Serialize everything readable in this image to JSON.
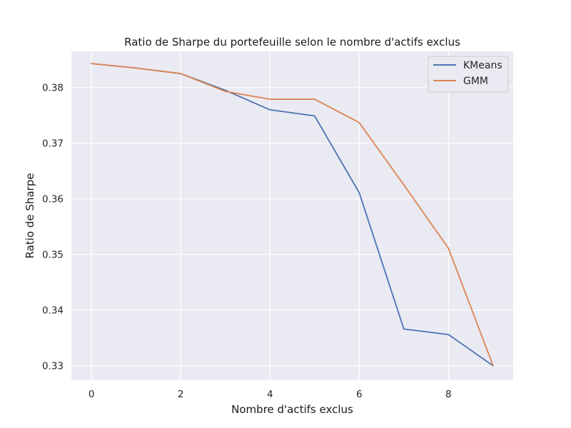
{
  "chart_data": {
    "type": "line",
    "title": "Ratio de Sharpe du portefeuille selon le nombre d'actifs exclus",
    "xlabel": "Nombre d'actifs exclus",
    "ylabel": "Ratio de Sharpe",
    "x": [
      0,
      1,
      2,
      3,
      4,
      5,
      6,
      7,
      8,
      9
    ],
    "xlim": [
      -0.45,
      9.45
    ],
    "ylim": [
      0.3274,
      0.3865
    ],
    "xticks": [
      0,
      2,
      4,
      6,
      8
    ],
    "yticks": [
      0.33,
      0.34,
      0.35,
      0.36,
      0.37,
      0.38
    ],
    "xtick_labels": [
      "0",
      "2",
      "4",
      "6",
      "8"
    ],
    "ytick_labels": [
      "0.33",
      "0.34",
      "0.35",
      "0.36",
      "0.37",
      "0.38"
    ],
    "grid": true,
    "legend_position": "top-right",
    "series": [
      {
        "name": "KMeans",
        "color": "#4c72b0",
        "values": [
          0.3843,
          0.3835,
          0.3825,
          0.3795,
          0.376,
          0.3749,
          0.3611,
          0.3366,
          0.3356,
          0.33
        ]
      },
      {
        "name": "GMM",
        "color": "#dd8452",
        "values": [
          0.3843,
          0.3835,
          0.3825,
          0.3793,
          0.3779,
          0.3779,
          0.3737,
          0.3625,
          0.3511,
          0.33
        ]
      }
    ]
  }
}
